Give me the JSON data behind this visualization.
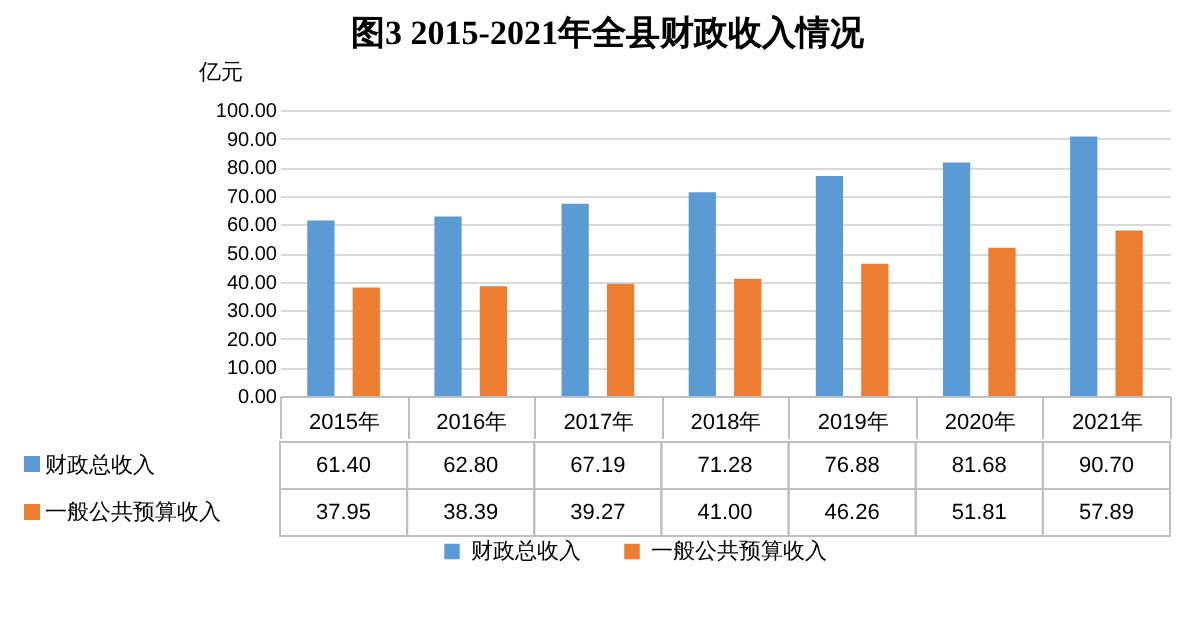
{
  "chart_data": {
    "type": "bar",
    "title": "图3 2015-2021年全县财政收入情况",
    "ylabel": "亿元",
    "categories": [
      "2015年",
      "2016年",
      "2017年",
      "2018年",
      "2019年",
      "2020年",
      "2021年"
    ],
    "series": [
      {
        "name": "财政总收入",
        "color": "#5b9bd5",
        "values": [
          61.4,
          62.8,
          67.19,
          71.28,
          76.88,
          81.68,
          90.7
        ],
        "value_labels": [
          "61.40",
          "62.80",
          "67.19",
          "71.28",
          "76.88",
          "81.68",
          "90.70"
        ]
      },
      {
        "name": "一般公共预算收入",
        "color": "#ed7d31",
        "values": [
          37.95,
          38.39,
          39.27,
          41.0,
          46.26,
          51.81,
          57.89
        ],
        "value_labels": [
          "37.95",
          "38.39",
          "39.27",
          "41.00",
          "46.26",
          "51.81",
          "57.89"
        ]
      }
    ],
    "ylim": [
      0,
      100
    ],
    "yticks": [
      {
        "value": 0,
        "label": "0.00"
      },
      {
        "value": 10,
        "label": "10.00"
      },
      {
        "value": 20,
        "label": "20.00"
      },
      {
        "value": 30,
        "label": "30.00"
      },
      {
        "value": 40,
        "label": "40.00"
      },
      {
        "value": 50,
        "label": "50.00"
      },
      {
        "value": 60,
        "label": "60.00"
      },
      {
        "value": 70,
        "label": "70.00"
      },
      {
        "value": 80,
        "label": "80.00"
      },
      {
        "value": 90,
        "label": "90.00"
      },
      {
        "value": 100,
        "label": "100.00"
      }
    ],
    "grid": "y",
    "legend": "bottom"
  }
}
